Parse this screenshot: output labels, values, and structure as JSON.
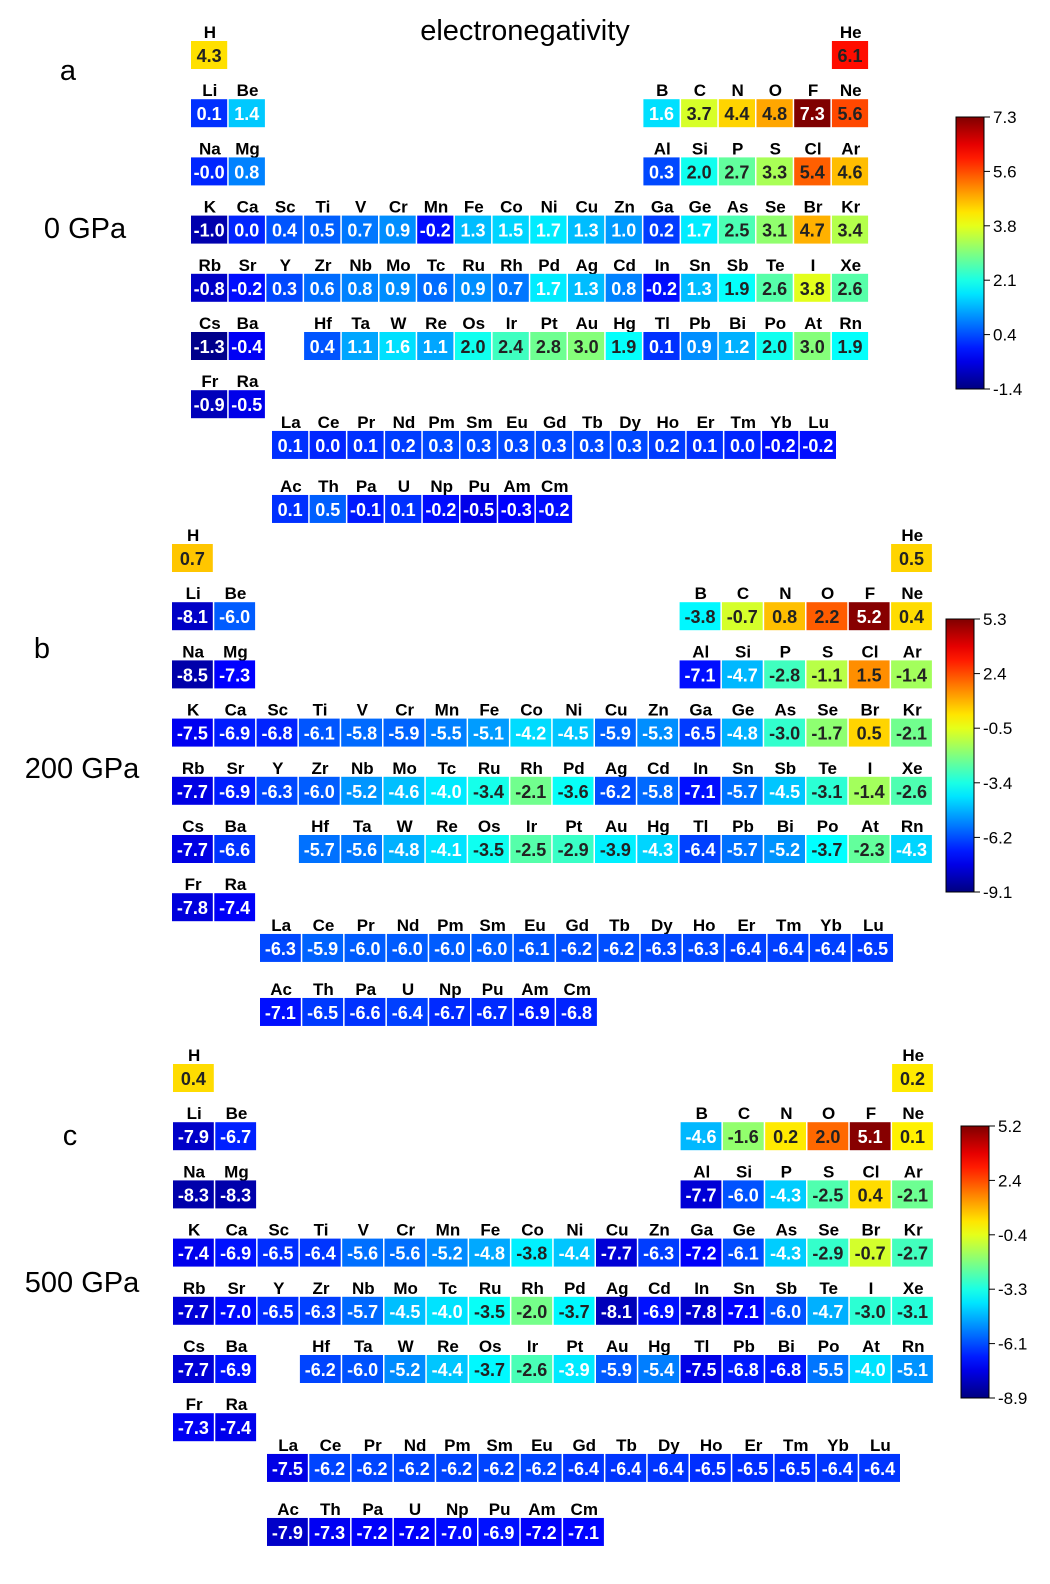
{
  "chart_data": {
    "type": "heatmap",
    "title": "electronegativity",
    "colormap": "jet",
    "panels": [
      {
        "label": "a",
        "pressure": "0 GPa",
        "colorbar_ticks": [
          "7.3",
          "5.6",
          "3.8",
          "2.1",
          "0.4",
          "-1.4"
        ],
        "values": {
          "H": 4.3,
          "He": 6.1,
          "Li": 0.1,
          "Be": 1.4,
          "B": 1.6,
          "C": 3.7,
          "N": 4.4,
          "O": 4.8,
          "F": 7.3,
          "Ne": 5.6,
          "Na": -0.0,
          "Mg": 0.8,
          "Al": 0.3,
          "Si": 2.0,
          "P": 2.7,
          "S": 3.3,
          "Cl": 5.4,
          "Ar": 4.6,
          "K": -1.0,
          "Ca": 0.0,
          "Sc": 0.4,
          "Ti": 0.5,
          "V": 0.7,
          "Cr": 0.9,
          "Mn": -0.2,
          "Fe": 1.3,
          "Co": 1.5,
          "Ni": 1.7,
          "Cu": 1.3,
          "Zn": 1.0,
          "Ga": 0.2,
          "Ge": 1.7,
          "As": 2.5,
          "Se": 3.1,
          "Br": 4.7,
          "Kr": 3.4,
          "Rb": -0.8,
          "Sr": -0.2,
          "Y": 0.3,
          "Zr": 0.6,
          "Nb": 0.8,
          "Mo": 0.9,
          "Tc": 0.6,
          "Ru": 0.9,
          "Rh": 0.7,
          "Pd": 1.7,
          "Ag": 1.3,
          "Cd": 0.8,
          "In": -0.2,
          "Sn": 1.3,
          "Sb": 1.9,
          "Te": 2.6,
          "I": 3.8,
          "Xe": 2.6,
          "Cs": -1.3,
          "Ba": -0.4,
          "Hf": 0.4,
          "Ta": 1.1,
          "W": 1.6,
          "Re": 1.1,
          "Os": 2.0,
          "Ir": 2.4,
          "Pt": 2.8,
          "Au": 3.0,
          "Hg": 1.9,
          "Tl": 0.1,
          "Pb": 0.9,
          "Bi": 1.2,
          "Po": 2.0,
          "At": 3.0,
          "Rn": 1.9,
          "Fr": -0.9,
          "Ra": -0.5,
          "La": 0.1,
          "Ce": 0.0,
          "Pr": 0.1,
          "Nd": 0.2,
          "Pm": 0.3,
          "Sm": 0.3,
          "Eu": 0.3,
          "Gd": 0.3,
          "Tb": 0.3,
          "Dy": 0.3,
          "Ho": 0.2,
          "Er": 0.1,
          "Tm": 0.0,
          "Yb": -0.2,
          "Lu": -0.2,
          "Ac": 0.1,
          "Th": 0.5,
          "Pa": -0.1,
          "U": 0.1,
          "Np": -0.2,
          "Pu": -0.5,
          "Am": -0.3,
          "Cm": -0.2
        }
      },
      {
        "label": "b",
        "pressure": "200 GPa",
        "colorbar_ticks": [
          "5.3",
          "2.4",
          "-0.5",
          "-3.4",
          "-6.2",
          "-9.1"
        ],
        "values": {
          "H": 0.7,
          "He": 0.5,
          "Li": -8.1,
          "Be": -6.0,
          "B": -3.8,
          "C": -0.7,
          "N": 0.8,
          "O": 2.2,
          "F": 5.2,
          "Ne": 0.4,
          "Na": -8.5,
          "Mg": -7.3,
          "Al": -7.1,
          "Si": -4.7,
          "P": -2.8,
          "S": -1.1,
          "Cl": 1.5,
          "Ar": -1.4,
          "K": -7.5,
          "Ca": -6.9,
          "Sc": -6.8,
          "Ti": -6.1,
          "V": -5.8,
          "Cr": -5.9,
          "Mn": -5.5,
          "Fe": -5.1,
          "Co": -4.2,
          "Ni": -4.5,
          "Cu": -5.9,
          "Zn": -5.3,
          "Ga": -6.5,
          "Ge": -4.8,
          "As": -3.0,
          "Se": -1.7,
          "Br": 0.5,
          "Kr": -2.1,
          "Rb": -7.7,
          "Sr": -6.9,
          "Y": -6.3,
          "Zr": -6.0,
          "Nb": -5.2,
          "Mo": -4.6,
          "Tc": -4.0,
          "Ru": -3.4,
          "Rh": -2.1,
          "Pd": -3.6,
          "Ag": -6.2,
          "Cd": -5.8,
          "In": -7.1,
          "Sn": -5.7,
          "Sb": -4.5,
          "Te": -3.1,
          "I": -1.4,
          "Xe": -2.6,
          "Cs": -7.7,
          "Ba": -6.6,
          "Hf": -5.7,
          "Ta": -5.6,
          "W": -4.8,
          "Re": -4.1,
          "Os": -3.5,
          "Ir": -2.5,
          "Pt": -2.9,
          "Au": -3.9,
          "Hg": -4.3,
          "Tl": -6.4,
          "Pb": -5.7,
          "Bi": -5.2,
          "Po": -3.7,
          "At": -2.3,
          "Rn": -4.3,
          "Fr": -7.8,
          "Ra": -7.4,
          "La": -6.3,
          "Ce": -5.9,
          "Pr": -6.0,
          "Nd": -6.0,
          "Pm": -6.0,
          "Sm": -6.0,
          "Eu": -6.1,
          "Gd": -6.2,
          "Tb": -6.2,
          "Dy": -6.3,
          "Ho": -6.3,
          "Er": -6.4,
          "Tm": -6.4,
          "Yb": -6.4,
          "Lu": -6.5,
          "Ac": -7.1,
          "Th": -6.5,
          "Pa": -6.6,
          "U": -6.4,
          "Np": -6.7,
          "Pu": -6.7,
          "Am": -6.9,
          "Cm": -6.8
        }
      },
      {
        "label": "c",
        "pressure": "500 GPa",
        "colorbar_ticks": [
          "5.2",
          "2.4",
          "-0.4",
          "-3.3",
          "-6.1",
          "-8.9"
        ],
        "values": {
          "H": 0.4,
          "He": 0.2,
          "Li": -7.9,
          "Be": -6.7,
          "B": -4.6,
          "C": -1.6,
          "N": 0.2,
          "O": 2.0,
          "F": 5.1,
          "Ne": 0.1,
          "Na": -8.3,
          "Mg": -8.3,
          "Al": -7.7,
          "Si": -6.0,
          "P": -4.3,
          "S": -2.5,
          "Cl": 0.4,
          "Ar": -2.1,
          "K": -7.4,
          "Ca": -6.9,
          "Sc": -6.5,
          "Ti": -6.4,
          "V": -5.6,
          "Cr": -5.6,
          "Mn": -5.2,
          "Fe": -4.8,
          "Co": -3.8,
          "Ni": -4.4,
          "Cu": -7.7,
          "Zn": -6.3,
          "Ga": -7.2,
          "Ge": -6.1,
          "As": -4.3,
          "Se": -2.9,
          "Br": -0.7,
          "Kr": -2.7,
          "Rb": -7.7,
          "Sr": -7.0,
          "Y": -6.5,
          "Zr": -6.3,
          "Nb": -5.7,
          "Mo": -4.5,
          "Tc": -4.0,
          "Ru": -3.5,
          "Rh": -2.0,
          "Pd": -3.7,
          "Ag": -8.1,
          "Cd": -6.9,
          "In": -7.8,
          "Sn": -7.1,
          "Sb": -6.0,
          "Te": -4.7,
          "I": -3.0,
          "Xe": -3.1,
          "Cs": -7.7,
          "Ba": -6.9,
          "Hf": -6.2,
          "Ta": -6.0,
          "W": -5.2,
          "Re": -4.4,
          "Os": -3.7,
          "Ir": -2.6,
          "Pt": -3.9,
          "Au": -5.9,
          "Hg": -5.4,
          "Tl": -7.5,
          "Pb": -6.8,
          "Bi": -6.8,
          "Po": -5.5,
          "At": -4.0,
          "Rn": -5.1,
          "Fr": -7.3,
          "Ra": -7.4,
          "La": -7.5,
          "Ce": -6.2,
          "Pr": -6.2,
          "Nd": -6.2,
          "Pm": -6.2,
          "Sm": -6.2,
          "Eu": -6.2,
          "Gd": -6.4,
          "Tb": -6.4,
          "Dy": -6.4,
          "Ho": -6.5,
          "Er": -6.5,
          "Tm": -6.5,
          "Yb": -6.4,
          "Lu": -6.4,
          "Ac": -7.9,
          "Th": -7.3,
          "Pa": -7.2,
          "U": -7.2,
          "Np": -7.0,
          "Pu": -6.9,
          "Am": -7.2,
          "Cm": -7.1
        }
      }
    ]
  }
}
